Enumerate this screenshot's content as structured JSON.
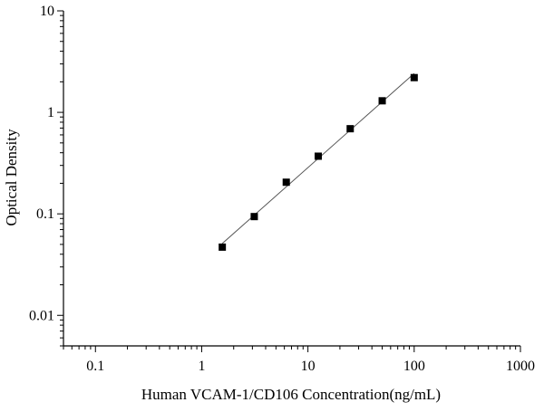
{
  "chart_data": {
    "type": "scatter",
    "title": "",
    "xlabel": "Human VCAM-1/CD106 Concentration(ng/mL)",
    "ylabel": "Optical Density",
    "xscale": "log",
    "yscale": "log",
    "xlim": [
      0.05,
      1000
    ],
    "ylim": [
      0.005,
      10
    ],
    "x_ticks": [
      {
        "value": 0.1,
        "label": "0.1"
      },
      {
        "value": 1,
        "label": "1"
      },
      {
        "value": 10,
        "label": "10"
      },
      {
        "value": 100,
        "label": "100"
      },
      {
        "value": 1000,
        "label": "1000"
      }
    ],
    "y_ticks": [
      {
        "value": 0.01,
        "label": "0.01"
      },
      {
        "value": 0.1,
        "label": "0.1"
      },
      {
        "value": 1,
        "label": "1"
      },
      {
        "value": 10,
        "label": "10"
      }
    ],
    "grid": false,
    "marker": "square",
    "colors": {
      "marker": "#000000",
      "line": "#555555",
      "axis": "#000000"
    },
    "series": [
      {
        "x": [
          1.5625,
          3.125,
          6.25,
          12.5,
          25,
          50,
          100
        ],
        "y": [
          0.047,
          0.094,
          0.205,
          0.37,
          0.69,
          1.3,
          2.2
        ]
      }
    ],
    "fit_line": {
      "x": [
        1.5625,
        100
      ]
    }
  }
}
